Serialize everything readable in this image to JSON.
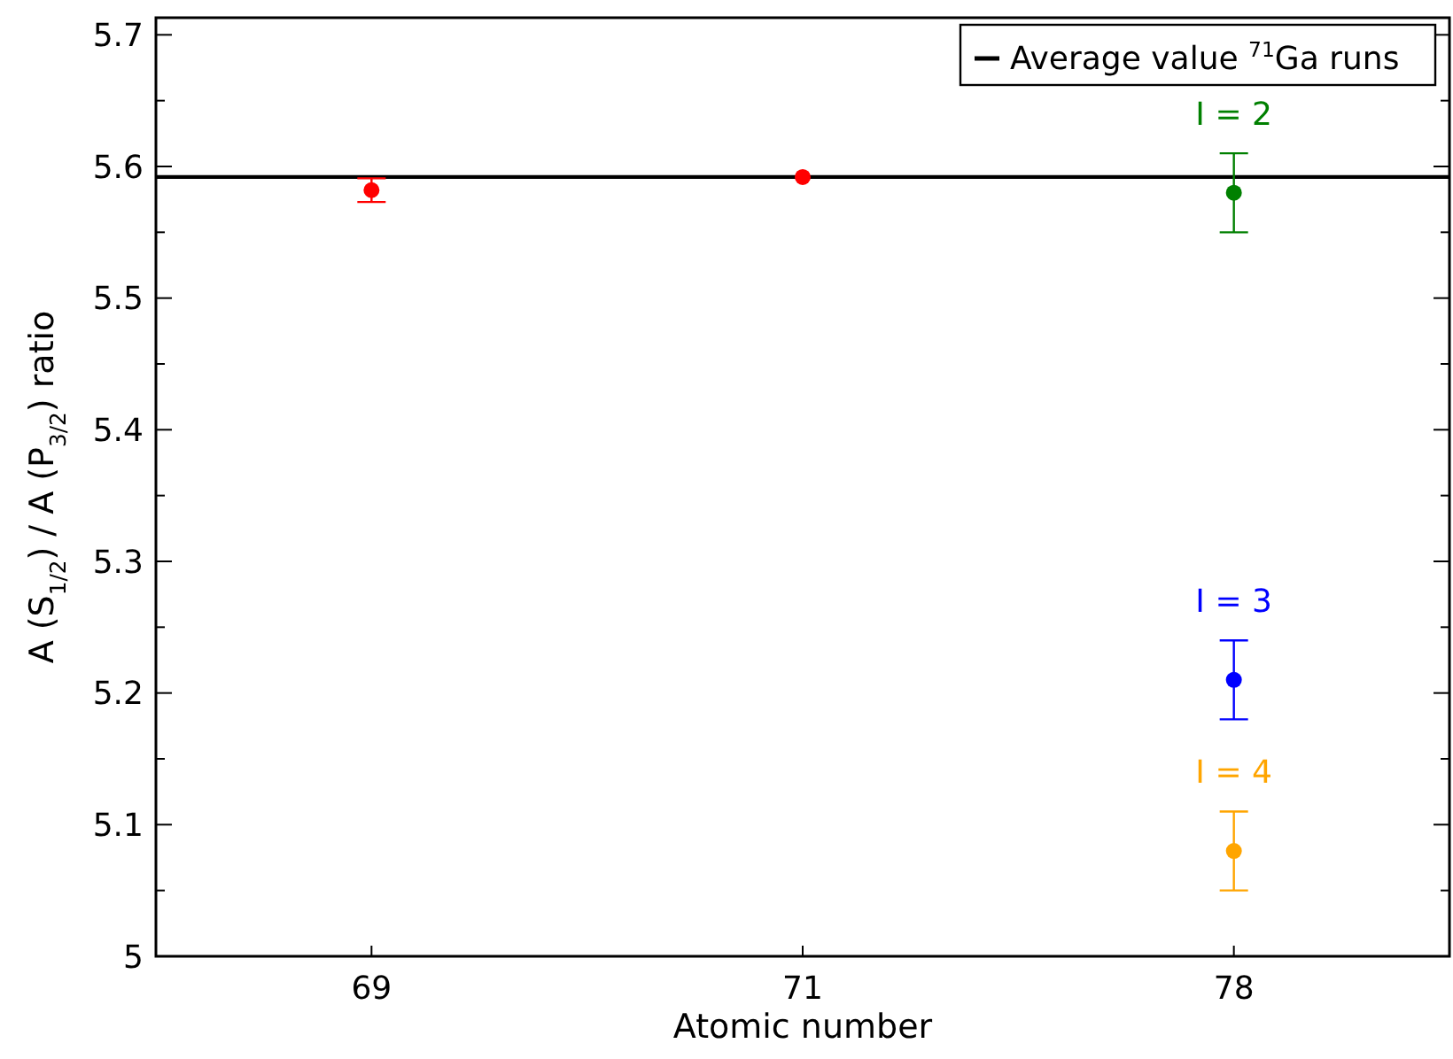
{
  "chart_data": {
    "type": "scatter",
    "xlabel": "Atomic number",
    "ylabel": "A (S$_{1/2}$)  / A (P$_{3/2}$)  ratio",
    "categories": [
      "69",
      "71",
      "78"
    ],
    "ylim": [
      5,
      5.713
    ],
    "yticks": [
      5,
      {
        "value": 5.05,
        "label": null
      },
      5.1,
      {
        "value": 5.15,
        "label": null
      },
      5.2,
      {
        "value": 5.25,
        "label": null
      },
      5.3,
      {
        "value": 5.35,
        "label": null
      },
      5.4,
      {
        "value": 5.45,
        "label": null
      },
      5.5,
      {
        "value": 5.55,
        "label": null
      },
      5.6,
      {
        "value": 5.65,
        "label": null
      },
      5.7
    ],
    "series": [
      {
        "color": "#ff0000",
        "values": [
          5.582,
          5.592,
          null
        ],
        "errors": [
          0.009,
          null,
          null
        ]
      },
      {
        "color": "#008000",
        "values": [
          null,
          null,
          5.58
        ],
        "errors": [
          null,
          null,
          0.03
        ]
      },
      {
        "color": "#0000ff",
        "values": [
          null,
          null,
          5.21
        ],
        "errors": [
          null,
          null,
          0.03
        ]
      },
      {
        "color": "#ffa500",
        "values": [
          null,
          null,
          5.08
        ],
        "errors": [
          null,
          null,
          0.03
        ]
      }
    ],
    "ref_lines": [
      {
        "axis": "y",
        "value": 5.592,
        "label": "Average value $^{71}$Ga runs",
        "color": "#000000"
      }
    ],
    "annotations": [
      {
        "text": "I = 2",
        "x": "78",
        "y": 5.58
      },
      {
        "text": "I = 3",
        "x": "78",
        "y": 5.21
      },
      {
        "text": "I = 4",
        "x": "78",
        "y": 5.08
      }
    ],
    "marker": "circle",
    "grid": false,
    "legend": "top right"
  }
}
